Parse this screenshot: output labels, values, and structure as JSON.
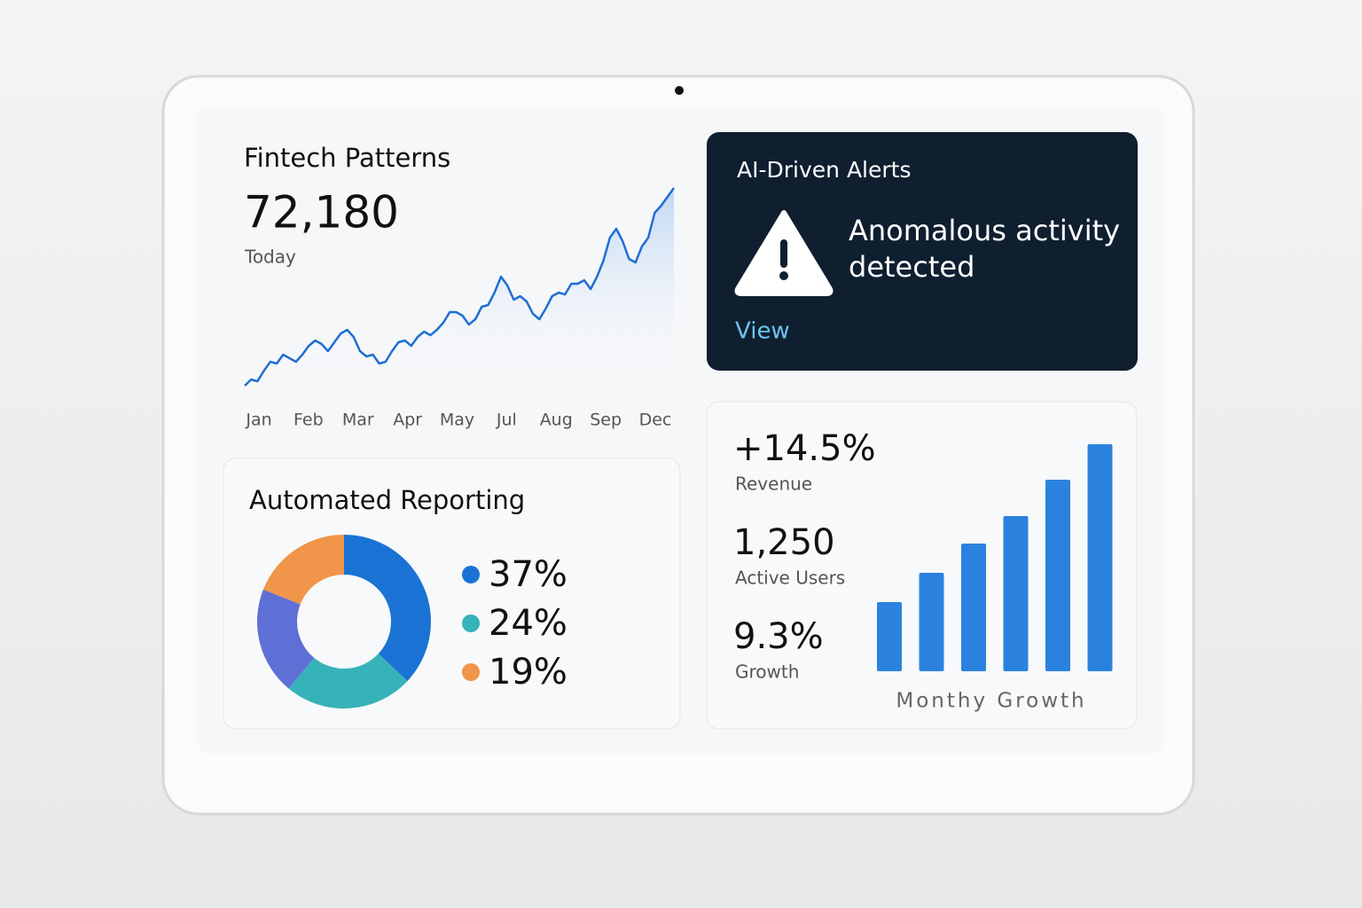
{
  "line_chart": {
    "type": "line",
    "title": "Fintech Patterns",
    "value": "72,180",
    "value_caption": "Today",
    "x_labels": [
      "Jan",
      "Feb",
      "Mar",
      "Apr",
      "May",
      "Jul",
      "Aug",
      "Sep",
      "Dec"
    ],
    "values": [
      5,
      12,
      10,
      22,
      32,
      30,
      40,
      36,
      32,
      40,
      50,
      56,
      52,
      44,
      54,
      64,
      68,
      60,
      44,
      38,
      40,
      30,
      32,
      44,
      54,
      56,
      50,
      60,
      66,
      62,
      68,
      76,
      88,
      88,
      84,
      74,
      80,
      94,
      96,
      110,
      128,
      118,
      102,
      106,
      100,
      86,
      80,
      92,
      106,
      110,
      108,
      120,
      120,
      124,
      114,
      128,
      146,
      172,
      182,
      168,
      148,
      144,
      162,
      172,
      200,
      208,
      218,
      228
    ],
    "ylim": [
      0,
      240
    ],
    "color": "#1f6fd1"
  },
  "alerts": {
    "title": "AI-Driven Alerts",
    "message": [
      "Anomalous activity",
      "detected"
    ],
    "action": "View"
  },
  "donut": {
    "type": "donut",
    "title": "Automated Reporting",
    "values": [
      37,
      24,
      20,
      19
    ],
    "value_labels": [
      "37%",
      "24%",
      null,
      "19%"
    ],
    "colors": [
      "#1a73d4",
      "#35b3b8",
      "#5e6fd6",
      "#f0954a"
    ]
  },
  "metrics": [
    {
      "value": "+14.5%",
      "label": "Revenue"
    },
    {
      "value": "1,250",
      "label": "Active Users"
    },
    {
      "value": "9.3%",
      "label": "Growth"
    }
  ],
  "bar_chart": {
    "type": "bar",
    "label": "Monthy Growth",
    "values": [
      78,
      111,
      144,
      175,
      216,
      256
    ],
    "ylim": [
      0,
      260
    ],
    "color": "#2b82de"
  }
}
